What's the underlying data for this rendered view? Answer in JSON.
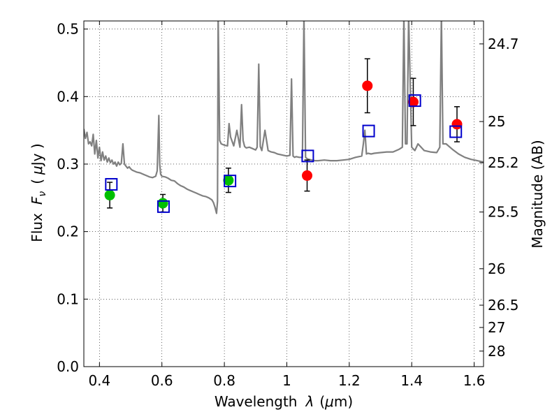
{
  "chart_data": {
    "type": "scatter",
    "xlabel_text": "Wavelength",
    "xlabel_symbol": "λ",
    "xlabel_unit_open": "(",
    "xlabel_unit_mu": "μ",
    "xlabel_unit_rest": "m)",
    "ylabel_text": "Flux",
    "ylabel_symbol": "F",
    "ylabel_sub": "ν",
    "ylabel_unit_open": "(",
    "ylabel_unit_mu": "μ",
    "ylabel_unit_rest": "Jy )",
    "y2label": "Magnitude (AB)",
    "xlim": [
      0.35,
      1.63
    ],
    "ylim": [
      0.0,
      0.512
    ],
    "grid": true,
    "grid_style": "dotted",
    "xticks": [
      0.4,
      0.6,
      0.8,
      1.0,
      1.2,
      1.4,
      1.6
    ],
    "xtick_labels": [
      "0.4",
      "0.6",
      "0.8",
      "1",
      "1.2",
      "1.4",
      "1.6"
    ],
    "yticks": [
      0.0,
      0.1,
      0.2,
      0.3,
      0.4,
      0.5
    ],
    "ytick_labels": [
      "0.0",
      "0.1",
      "0.2",
      "0.3",
      "0.4",
      "0.5"
    ],
    "y2ticks": [
      {
        "label": "24.7",
        "flux": 0.478
      },
      {
        "label": "25",
        "flux": 0.363
      },
      {
        "label": "25.2",
        "flux": 0.302
      },
      {
        "label": "25.5",
        "flux": 0.229
      },
      {
        "label": "26",
        "flux": 0.145
      },
      {
        "label": "26.5",
        "flux": 0.091
      },
      {
        "label": "27",
        "flux": 0.058
      },
      {
        "label": "28",
        "flux": 0.023
      }
    ],
    "colors": {
      "spectrum": "#808080",
      "green": "#00bf00",
      "red": "#ff0000",
      "model": "#0000cc",
      "errorbar": "#000000"
    },
    "spectrum": {
      "name": "",
      "x": [
        0.35,
        0.355,
        0.36,
        0.365,
        0.37,
        0.375,
        0.38,
        0.385,
        0.39,
        0.395,
        0.4,
        0.405,
        0.41,
        0.415,
        0.42,
        0.425,
        0.43,
        0.435,
        0.44,
        0.445,
        0.45,
        0.455,
        0.46,
        0.465,
        0.47,
        0.475,
        0.48,
        0.485,
        0.49,
        0.495,
        0.5,
        0.505,
        0.51,
        0.52,
        0.53,
        0.54,
        0.55,
        0.56,
        0.57,
        0.58,
        0.585,
        0.59,
        0.593,
        0.596,
        0.6,
        0.61,
        0.62,
        0.63,
        0.64,
        0.65,
        0.66,
        0.67,
        0.68,
        0.69,
        0.7,
        0.71,
        0.72,
        0.73,
        0.74,
        0.75,
        0.76,
        0.765,
        0.77,
        0.775,
        0.778,
        0.78,
        0.785,
        0.79,
        0.8,
        0.81,
        0.815,
        0.82,
        0.83,
        0.84,
        0.85,
        0.855,
        0.86,
        0.865,
        0.87,
        0.88,
        0.89,
        0.9,
        0.905,
        0.91,
        0.915,
        0.92,
        0.93,
        0.94,
        0.95,
        0.96,
        0.97,
        0.98,
        0.99,
        1.0,
        1.01,
        1.015,
        1.02,
        1.025,
        1.03,
        1.04,
        1.05,
        1.055,
        1.06,
        1.065,
        1.07,
        1.08,
        1.09,
        1.1,
        1.12,
        1.14,
        1.16,
        1.18,
        1.2,
        1.22,
        1.24,
        1.245,
        1.25,
        1.255,
        1.26,
        1.27,
        1.28,
        1.3,
        1.32,
        1.34,
        1.36,
        1.37,
        1.375,
        1.38,
        1.385,
        1.39,
        1.4,
        1.41,
        1.42,
        1.44,
        1.46,
        1.48,
        1.49,
        1.495,
        1.5,
        1.505,
        1.51,
        1.53,
        1.55,
        1.57,
        1.59,
        1.61,
        1.63
      ],
      "y": [
        0.352,
        0.338,
        0.347,
        0.33,
        0.333,
        0.327,
        0.344,
        0.315,
        0.335,
        0.309,
        0.325,
        0.305,
        0.318,
        0.306,
        0.312,
        0.303,
        0.309,
        0.302,
        0.306,
        0.3,
        0.303,
        0.297,
        0.303,
        0.299,
        0.301,
        0.33,
        0.3,
        0.297,
        0.294,
        0.296,
        0.293,
        0.291,
        0.29,
        0.288,
        0.287,
        0.285,
        0.283,
        0.281,
        0.28,
        0.282,
        0.29,
        0.372,
        0.3,
        0.285,
        0.282,
        0.281,
        0.279,
        0.276,
        0.275,
        0.271,
        0.268,
        0.266,
        0.263,
        0.261,
        0.259,
        0.257,
        0.255,
        0.253,
        0.252,
        0.25,
        0.247,
        0.243,
        0.236,
        0.227,
        0.245,
        0.52,
        0.335,
        0.33,
        0.328,
        0.327,
        0.36,
        0.34,
        0.327,
        0.35,
        0.325,
        0.388,
        0.335,
        0.326,
        0.324,
        0.325,
        0.323,
        0.321,
        0.325,
        0.448,
        0.326,
        0.32,
        0.35,
        0.32,
        0.318,
        0.317,
        0.315,
        0.314,
        0.313,
        0.312,
        0.313,
        0.426,
        0.312,
        0.31,
        0.311,
        0.31,
        0.31,
        0.52,
        0.31,
        0.308,
        0.307,
        0.306,
        0.305,
        0.305,
        0.306,
        0.305,
        0.305,
        0.306,
        0.307,
        0.31,
        0.312,
        0.33,
        0.35,
        0.315,
        0.316,
        0.315,
        0.316,
        0.317,
        0.318,
        0.318,
        0.322,
        0.325,
        0.52,
        0.33,
        0.33,
        0.52,
        0.325,
        0.32,
        0.33,
        0.32,
        0.318,
        0.317,
        0.325,
        0.52,
        0.33,
        0.33,
        0.33,
        0.322,
        0.315,
        0.31,
        0.307,
        0.305,
        0.303
      ]
    },
    "series": [
      {
        "name": "",
        "color_key": "green",
        "marker": "circle",
        "x": [
          0.433,
          0.603,
          0.813
        ],
        "y": [
          0.254,
          0.242,
          0.276
        ],
        "yerr": [
          0.019,
          0.013,
          0.018
        ]
      },
      {
        "name": "",
        "color_key": "red",
        "marker": "circle",
        "x": [
          1.065,
          1.258,
          1.405,
          1.545
        ],
        "y": [
          0.283,
          0.416,
          0.392,
          0.359
        ],
        "yerr": [
          0.023,
          0.04,
          0.035,
          0.026
        ]
      },
      {
        "name": "",
        "color_key": "model",
        "marker": "open-square",
        "x": [
          0.438,
          0.605,
          0.818,
          1.067,
          1.262,
          1.41,
          1.541
        ],
        "y": [
          0.27,
          0.237,
          0.275,
          0.312,
          0.349,
          0.394,
          0.348
        ]
      }
    ]
  }
}
